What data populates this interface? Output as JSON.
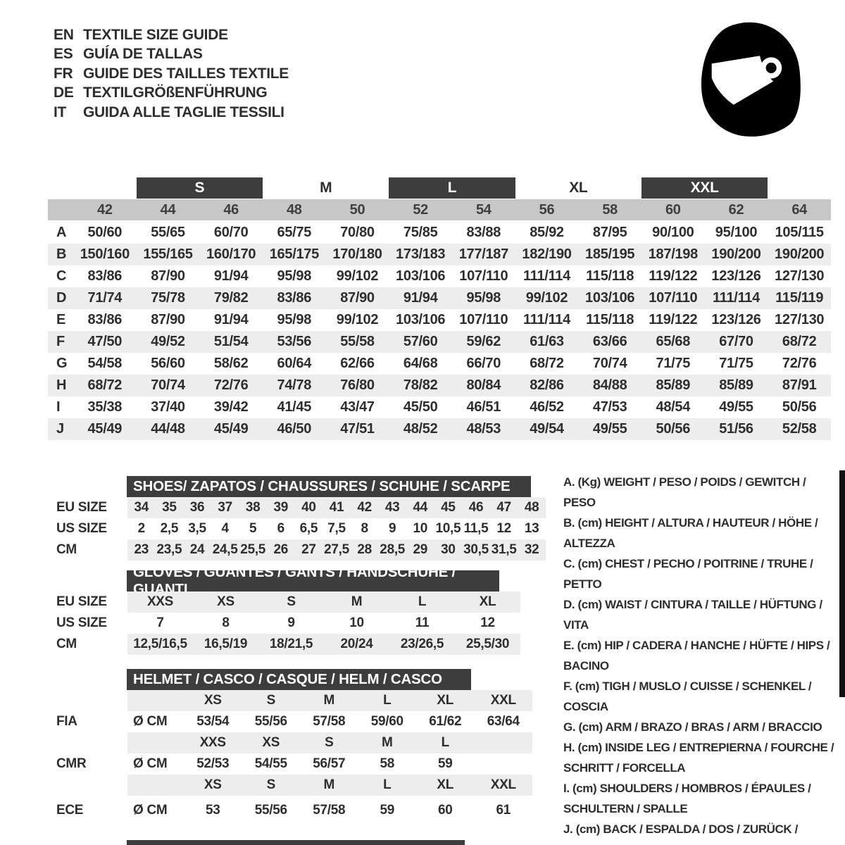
{
  "header": {
    "languages": [
      {
        "code": "EN",
        "text": "TEXTILE SIZE GUIDE"
      },
      {
        "code": "ES",
        "text": "GUÍA DE TALLAS"
      },
      {
        "code": "FR",
        "text": "GUIDE DES TAILLES TEXTILE"
      },
      {
        "code": "DE",
        "text": "TEXTILGRÖßENFÜHRUNG"
      },
      {
        "code": "IT",
        "text": "GUIDA ALLE TAGLIE TESSILI"
      }
    ],
    "icon": "helmet-icon"
  },
  "size_table": {
    "size_groups": [
      {
        "label": "S",
        "dark": true
      },
      {
        "label": "M",
        "dark": false
      },
      {
        "label": "L",
        "dark": true
      },
      {
        "label": "XL",
        "dark": false
      },
      {
        "label": "XXL",
        "dark": true
      }
    ],
    "numeric_sizes": [
      "42",
      "44",
      "46",
      "48",
      "50",
      "52",
      "54",
      "56",
      "58",
      "60",
      "62",
      "64"
    ],
    "rows": [
      {
        "label": "A",
        "values": [
          "50/60",
          "55/65",
          "60/70",
          "65/75",
          "70/80",
          "75/85",
          "83/88",
          "85/92",
          "87/95",
          "90/100",
          "95/100",
          "105/115"
        ]
      },
      {
        "label": "B",
        "values": [
          "150/160",
          "155/165",
          "160/170",
          "165/175",
          "170/180",
          "173/183",
          "177/187",
          "182/190",
          "185/195",
          "187/198",
          "190/200",
          "190/200"
        ]
      },
      {
        "label": "C",
        "values": [
          "83/86",
          "87/90",
          "91/94",
          "95/98",
          "99/102",
          "103/106",
          "107/110",
          "111/114",
          "115/118",
          "119/122",
          "123/126",
          "127/130"
        ]
      },
      {
        "label": "D",
        "values": [
          "71/74",
          "75/78",
          "79/82",
          "83/86",
          "87/90",
          "91/94",
          "95/98",
          "99/102",
          "103/106",
          "107/110",
          "111/114",
          "115/119"
        ]
      },
      {
        "label": "E",
        "values": [
          "83/86",
          "87/90",
          "91/94",
          "95/98",
          "99/102",
          "103/106",
          "107/110",
          "111/114",
          "115/118",
          "119/122",
          "123/126",
          "127/130"
        ]
      },
      {
        "label": "F",
        "values": [
          "47/50",
          "49/52",
          "51/54",
          "53/56",
          "55/58",
          "57/60",
          "59/62",
          "61/63",
          "63/66",
          "65/68",
          "67/70",
          "68/72"
        ]
      },
      {
        "label": "G",
        "values": [
          "54/58",
          "56/60",
          "58/62",
          "60/64",
          "62/66",
          "64/68",
          "66/70",
          "68/72",
          "70/74",
          "71/75",
          "71/75",
          "72/76"
        ]
      },
      {
        "label": "H",
        "values": [
          "68/72",
          "70/74",
          "72/76",
          "74/78",
          "76/80",
          "78/82",
          "80/84",
          "82/86",
          "84/88",
          "85/89",
          "85/89",
          "87/91"
        ]
      },
      {
        "label": "I",
        "values": [
          "35/38",
          "37/40",
          "39/42",
          "41/45",
          "43/47",
          "45/50",
          "46/51",
          "46/52",
          "47/53",
          "48/54",
          "49/55",
          "50/56"
        ]
      },
      {
        "label": "J",
        "values": [
          "45/49",
          "44/48",
          "45/49",
          "46/50",
          "47/51",
          "48/52",
          "48/53",
          "49/54",
          "49/55",
          "50/56",
          "51/56",
          "52/58"
        ]
      }
    ]
  },
  "shoes": {
    "title": "SHOES/ ZAPATOS / CHAUSSURES / SCHUHE / SCARPE",
    "rows": [
      {
        "label": "EU SIZE",
        "values": [
          "34",
          "35",
          "36",
          "37",
          "38",
          "39",
          "40",
          "41",
          "42",
          "43",
          "44",
          "45",
          "46",
          "47",
          "48"
        ]
      },
      {
        "label": "US SIZE",
        "values": [
          "2",
          "2,5",
          "3,5",
          "4",
          "5",
          "6",
          "6,5",
          "7,5",
          "8",
          "9",
          "10",
          "10,5",
          "11,5",
          "12",
          "13"
        ]
      },
      {
        "label": "CM",
        "values": [
          "23",
          "23,5",
          "24",
          "24,5",
          "25,5",
          "26",
          "27",
          "27,5",
          "28",
          "28,5",
          "29",
          "30",
          "30,5",
          "31,5",
          "32"
        ]
      }
    ]
  },
  "gloves": {
    "title": "GLOVES / GUANTES / GANTS / HANDSCHUHE / GUANTI",
    "rows": [
      {
        "label": "EU SIZE",
        "values": [
          "XXS",
          "XS",
          "S",
          "M",
          "L",
          "XL"
        ]
      },
      {
        "label": "US SIZE",
        "values": [
          "7",
          "8",
          "9",
          "10",
          "11",
          "12"
        ]
      },
      {
        "label": "CM",
        "values": [
          "12,5/16,5",
          "16,5/19",
          "18/21,5",
          "20/24",
          "23/26,5",
          "25,5/30"
        ]
      }
    ]
  },
  "helmet": {
    "title": "HELMET / CASCO / CASQUE / HELM / CASCO",
    "sections": [
      {
        "label": "FIA",
        "unit": "Ø CM",
        "sizes": [
          "XS",
          "S",
          "M",
          "L",
          "XL",
          "XXL"
        ],
        "values": [
          "53/54",
          "55/56",
          "57/58",
          "59/60",
          "61/62",
          "63/64"
        ]
      },
      {
        "label": "CMR",
        "unit": "Ø CM",
        "sizes": [
          "XXS",
          "XS",
          "S",
          "M",
          "L",
          ""
        ],
        "values": [
          "52/53",
          "54/55",
          "56/57",
          "58",
          "59",
          ""
        ]
      },
      {
        "label": "ECE",
        "unit": "Ø CM",
        "sizes": [
          "XS",
          "S",
          "M",
          "L",
          "XL",
          "XXL"
        ],
        "values": [
          "53",
          "55/56",
          "57/58",
          "59",
          "60",
          "61"
        ]
      }
    ]
  },
  "legend": {
    "items": [
      "A. (Kg) WEIGHT / PESO / POIDS / GEWITCH / PESO",
      "B. (cm) HEIGHT / ALTURA / HAUTEUR / HÖHE / ALTEZZA",
      "C. (cm) CHEST / PECHO / POITRINE / TRUHE / PETTO",
      "D. (cm) WAIST / CINTURA / TAILLE / HÜFTUNG / VITA",
      "E. (cm) HIP / CADERA / HANCHE / HÜFTE / HIPS / BACINO",
      "F. (cm) TIGH / MUSLO / CUISSE / SCHENKEL / COSCIA",
      "G. (cm) ARM / BRAZO / BRAS / ARM / BRACCIO",
      "H. (cm) INSIDE LEG / ENTREPIERNA / FOURCHE / SCHRITT / FORCELLA",
      "I. (cm) SHOULDERS / HOMBROS / ÉPAULES / SCHULTERN / SPALLE",
      "J. (cm) BACK / ESPALDA / DOS / ZURÜCK / INDIETRO"
    ]
  },
  "colors": {
    "dark_bar": "#3d3d3d",
    "numeric_band": "#c7c7c7",
    "row_stripe": "#ededed",
    "text": "#2e2e2e"
  }
}
